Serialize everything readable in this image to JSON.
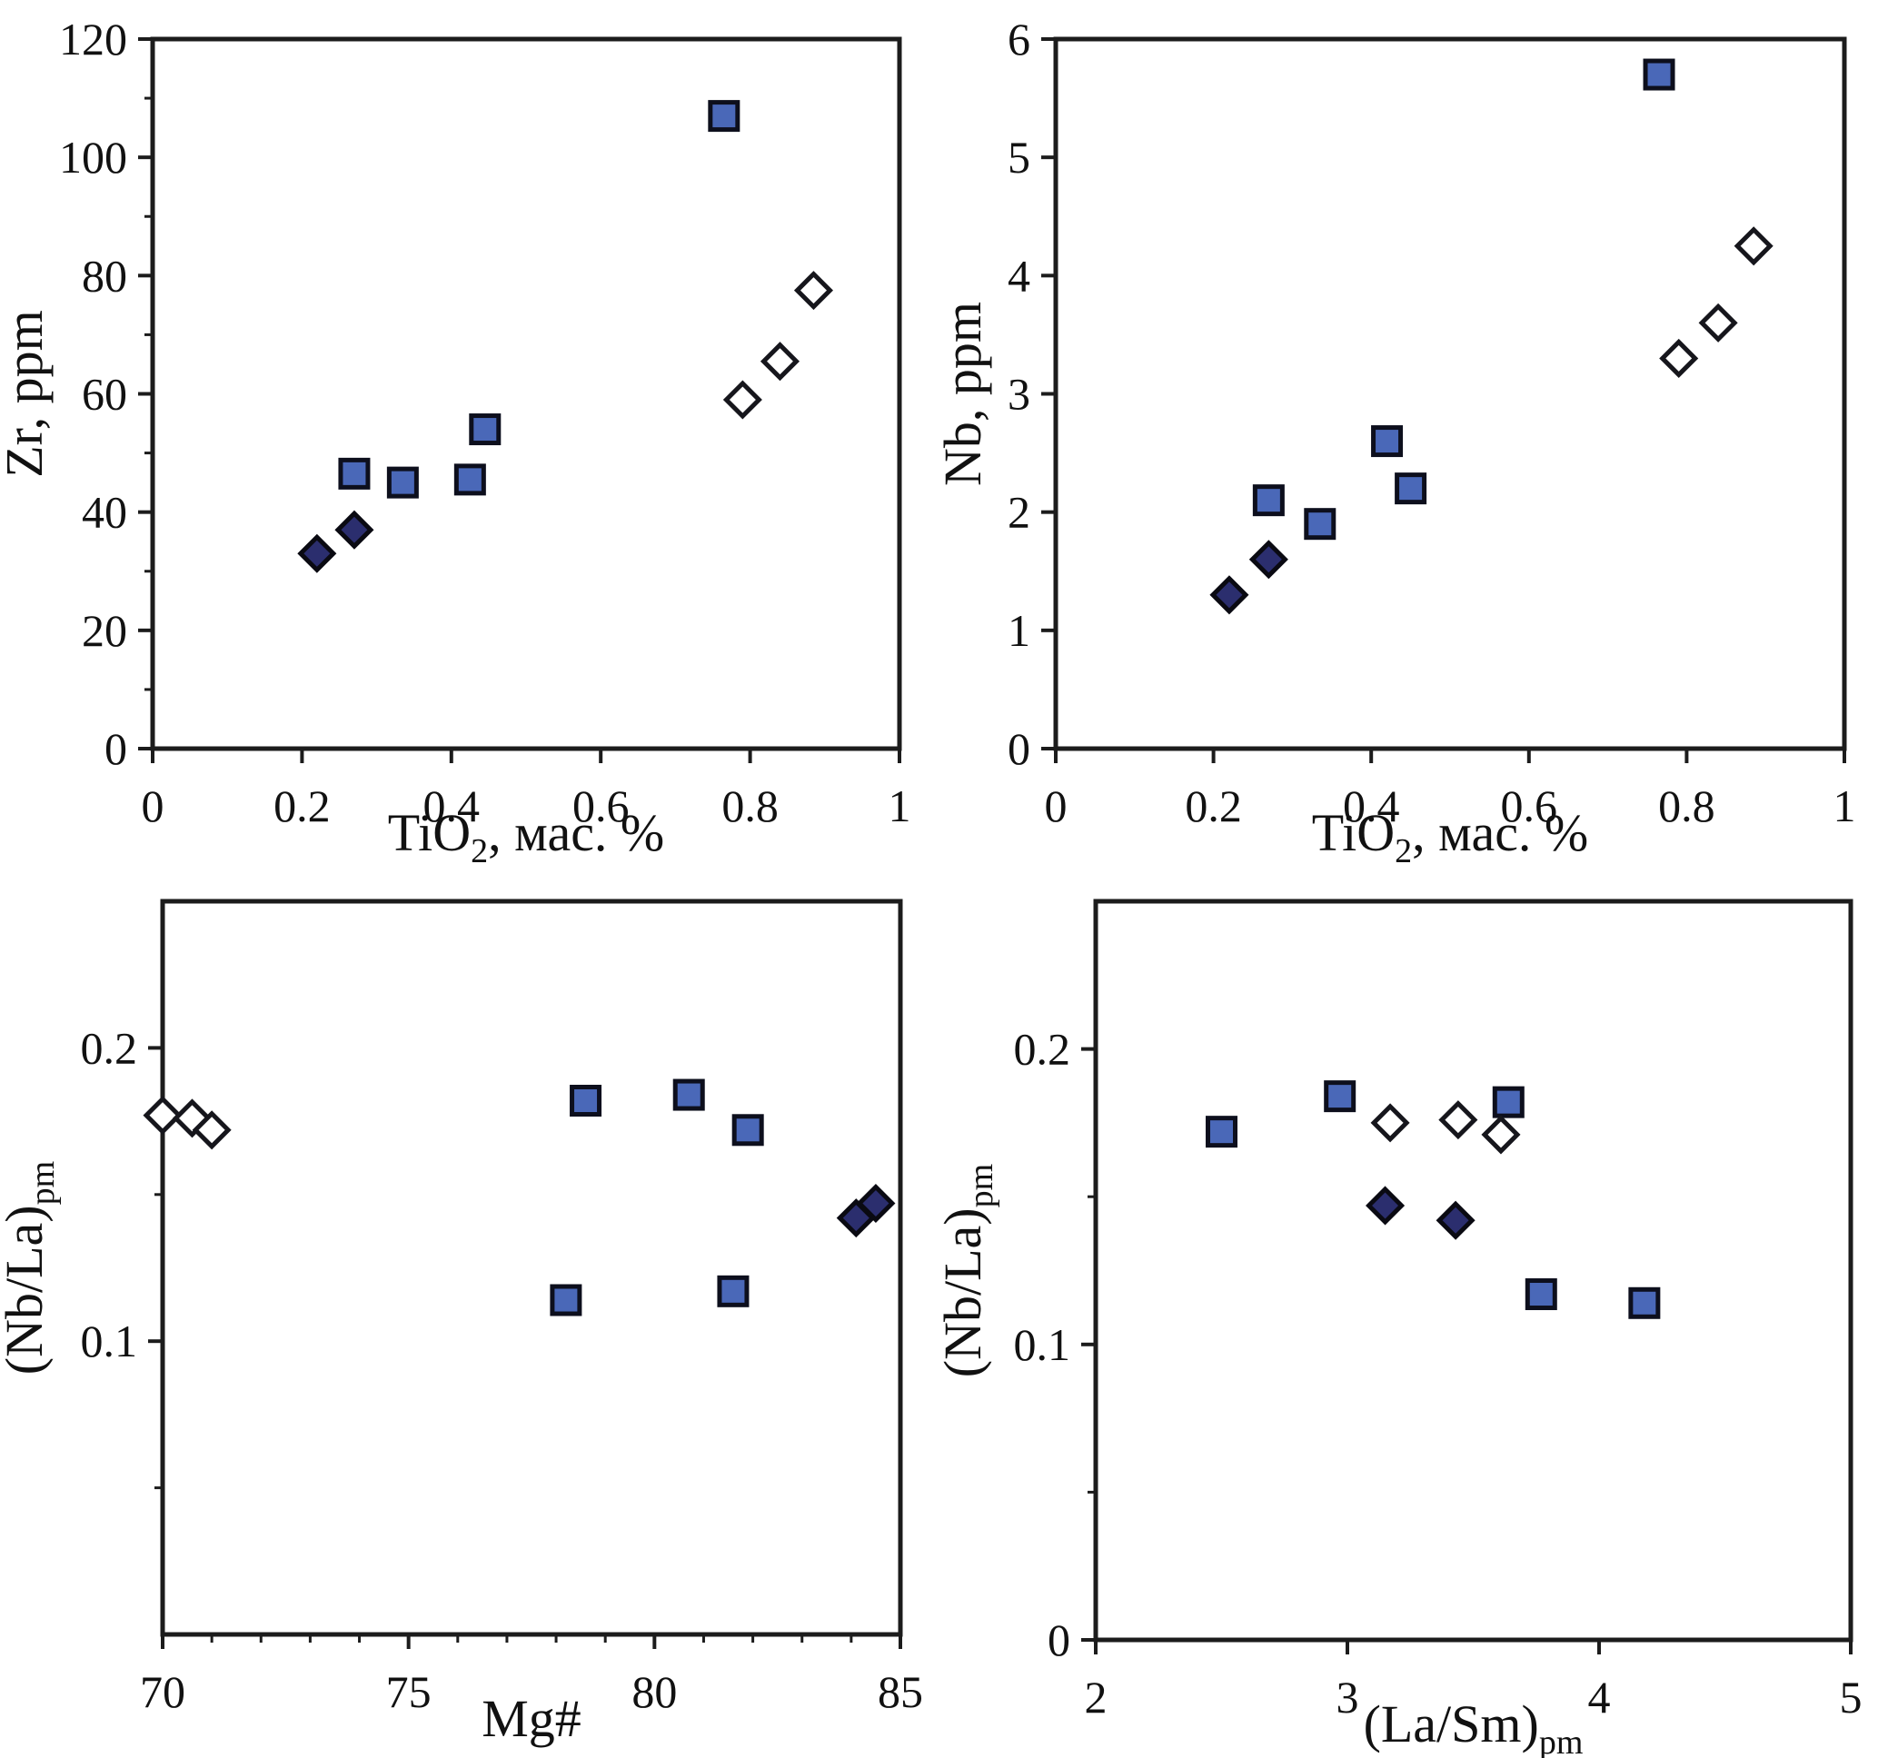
{
  "figure": {
    "background": "#ffffff",
    "axis_color": "#1c1c1c",
    "text_color": "#111111"
  },
  "markers": {
    "blue_square": {
      "shape": "square",
      "fill": "#4a68b8",
      "stroke": "#0d0f1d",
      "label": "filled blue squares"
    },
    "dark_diamond": {
      "shape": "diamond",
      "fill": "#2b2e6e",
      "stroke": "#0a0a12",
      "label": "filled dark-navy diamonds"
    },
    "open_diamond": {
      "shape": "diamond",
      "fill": "#ffffff",
      "stroke": "#16161c",
      "label": "open white diamonds"
    }
  },
  "chart_data": [
    {
      "id": "zr-vs-tio2",
      "type": "scatter",
      "title": "",
      "xlabel": "TiO{2}, мас. %",
      "ylabel": "Zr, ppm",
      "xlim": [
        0,
        1
      ],
      "ylim": [
        0,
        120
      ],
      "grid": false,
      "legend": "none",
      "xticks": {
        "major": [
          0,
          0.2,
          0.4,
          0.6,
          0.8,
          1
        ],
        "labels": [
          "0",
          "0.2",
          "0.4",
          "0.6",
          "0.8",
          "1"
        ],
        "minor": []
      },
      "yticks": {
        "major": [
          0,
          20,
          40,
          60,
          80,
          100,
          120
        ],
        "labels": [
          "0",
          "20",
          "40",
          "60",
          "80",
          "100",
          "120"
        ],
        "minor": [
          10,
          30,
          50,
          70,
          90,
          110
        ]
      },
      "series": [
        {
          "name": "blue-squares",
          "marker": "blue_square",
          "points": [
            [
              0.27,
              46.5
            ],
            [
              0.335,
              45
            ],
            [
              0.425,
              45.5
            ],
            [
              0.445,
              54
            ],
            [
              0.765,
              107
            ]
          ]
        },
        {
          "name": "dark-diamonds",
          "marker": "dark_diamond",
          "points": [
            [
              0.22,
              33
            ],
            [
              0.27,
              37
            ]
          ]
        },
        {
          "name": "open-diamonds",
          "marker": "open_diamond",
          "points": [
            [
              0.79,
              59
            ],
            [
              0.84,
              65.5
            ],
            [
              0.885,
              77.5
            ]
          ]
        }
      ]
    },
    {
      "id": "nb-vs-tio2",
      "type": "scatter",
      "title": "",
      "xlabel": "TiO{2}, мас. %",
      "ylabel": "Nb, ppm",
      "xlim": [
        0,
        1
      ],
      "ylim": [
        0,
        6
      ],
      "grid": false,
      "legend": "none",
      "xticks": {
        "major": [
          0,
          0.2,
          0.4,
          0.6,
          0.8,
          1
        ],
        "labels": [
          "0",
          "0.2",
          "0.4",
          "0.6",
          "0.8",
          "1"
        ],
        "minor": []
      },
      "yticks": {
        "major": [
          0,
          1,
          2,
          3,
          4,
          5,
          6
        ],
        "labels": [
          "0",
          "1",
          "2",
          "3",
          "4",
          "5",
          "6"
        ],
        "minor": []
      },
      "series": [
        {
          "name": "blue-squares",
          "marker": "blue_square",
          "points": [
            [
              0.27,
              2.1
            ],
            [
              0.335,
              1.9
            ],
            [
              0.42,
              2.6
            ],
            [
              0.45,
              2.2
            ],
            [
              0.765,
              5.7
            ]
          ]
        },
        {
          "name": "dark-diamonds",
          "marker": "dark_diamond",
          "points": [
            [
              0.22,
              1.3
            ],
            [
              0.27,
              1.6
            ]
          ]
        },
        {
          "name": "open-diamonds",
          "marker": "open_diamond",
          "points": [
            [
              0.79,
              3.3
            ],
            [
              0.84,
              3.6
            ],
            [
              0.885,
              4.25
            ]
          ]
        }
      ]
    },
    {
      "id": "nbla-vs-mg",
      "type": "scatter",
      "title": "",
      "xlabel": "Mg#",
      "ylabel": "(Nb/La){pm}",
      "xlim": [
        70,
        85
      ],
      "ylim": [
        0,
        0.25
      ],
      "grid": false,
      "legend": "none",
      "xticks": {
        "major": [
          70,
          75,
          80,
          85
        ],
        "labels": [
          "70",
          "75",
          "80",
          "85"
        ],
        "minor": [
          71,
          72,
          73,
          74,
          76,
          77,
          78,
          79,
          81,
          82,
          83,
          84
        ]
      },
      "yticks": {
        "major": [
          0.1,
          0.2
        ],
        "labels": [
          "0.1",
          "0.2"
        ],
        "minor": [
          0.05,
          0.15
        ]
      },
      "series": [
        {
          "name": "blue-squares",
          "marker": "blue_square",
          "points": [
            [
              78.2,
              0.114
            ],
            [
              78.6,
              0.182
            ],
            [
              80.7,
              0.184
            ],
            [
              81.6,
              0.117
            ],
            [
              81.9,
              0.172
            ]
          ]
        },
        {
          "name": "dark-diamonds",
          "marker": "dark_diamond",
          "points": [
            [
              84.1,
              0.142
            ],
            [
              84.5,
              0.147
            ]
          ]
        },
        {
          "name": "open-diamonds",
          "marker": "open_diamond",
          "points": [
            [
              70.0,
              0.177
            ],
            [
              70.6,
              0.176
            ],
            [
              71.0,
              0.172
            ]
          ]
        }
      ]
    },
    {
      "id": "nbla-vs-lasm",
      "type": "scatter",
      "title": "",
      "xlabel": "(La/Sm){pm}",
      "ylabel": "(Nb/La){pm}",
      "xlim": [
        2,
        5
      ],
      "ylim": [
        0,
        0.25
      ],
      "grid": false,
      "legend": "none",
      "xticks": {
        "major": [
          2,
          3,
          4,
          5
        ],
        "labels": [
          "2",
          "3",
          "4",
          "5"
        ],
        "minor": []
      },
      "yticks": {
        "major": [
          0,
          0.1,
          0.2
        ],
        "labels": [
          "0",
          "0.1",
          "0.2"
        ],
        "minor": [
          0.05,
          0.15
        ]
      },
      "series": [
        {
          "name": "blue-squares",
          "marker": "blue_square",
          "points": [
            [
              2.5,
              0.172
            ],
            [
              2.97,
              0.184
            ],
            [
              3.64,
              0.182
            ],
            [
              3.77,
              0.117
            ],
            [
              4.18,
              0.114
            ]
          ]
        },
        {
          "name": "dark-diamonds",
          "marker": "dark_diamond",
          "points": [
            [
              3.15,
              0.147
            ],
            [
              3.43,
              0.142
            ]
          ]
        },
        {
          "name": "open-diamonds",
          "marker": "open_diamond",
          "points": [
            [
              3.17,
              0.175
            ],
            [
              3.44,
              0.176
            ],
            [
              3.61,
              0.171
            ]
          ]
        }
      ]
    }
  ]
}
